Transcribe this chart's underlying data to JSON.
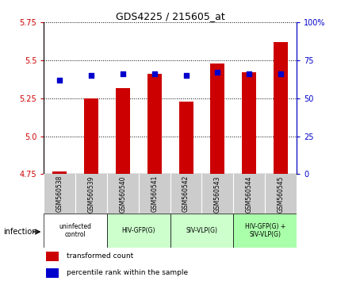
{
  "title": "GDS4225 / 215605_at",
  "samples": [
    "GSM560538",
    "GSM560539",
    "GSM560540",
    "GSM560541",
    "GSM560542",
    "GSM560543",
    "GSM560544",
    "GSM560545"
  ],
  "transformed_count": [
    4.77,
    5.25,
    5.32,
    5.41,
    5.23,
    5.48,
    5.42,
    5.62
  ],
  "percentile_rank": [
    62,
    65,
    66,
    66,
    65,
    67,
    66,
    66
  ],
  "ylim_left": [
    4.75,
    5.75
  ],
  "ylim_right": [
    0,
    100
  ],
  "yticks_left": [
    4.75,
    5.0,
    5.25,
    5.5,
    5.75
  ],
  "yticks_right": [
    0,
    25,
    50,
    75,
    100
  ],
  "bar_color": "#cc0000",
  "dot_color": "#0000cc",
  "bar_bottom": 4.75,
  "group_colors": [
    "#ffffff",
    "#ccffcc",
    "#ccffcc",
    "#aaffaa"
  ],
  "group_labels": [
    "uninfected\ncontrol",
    "HIV-GFP(G)",
    "SIV-VLP(G)",
    "HIV-GFP(G) +\nSIV-VLP(G)"
  ],
  "group_ranges": [
    [
      0,
      2
    ],
    [
      2,
      4
    ],
    [
      4,
      6
    ],
    [
      6,
      8
    ]
  ],
  "infection_label": "infection",
  "legend_red": "transformed count",
  "legend_blue": "percentile rank within the sample",
  "bg_color_samples": "#cccccc"
}
